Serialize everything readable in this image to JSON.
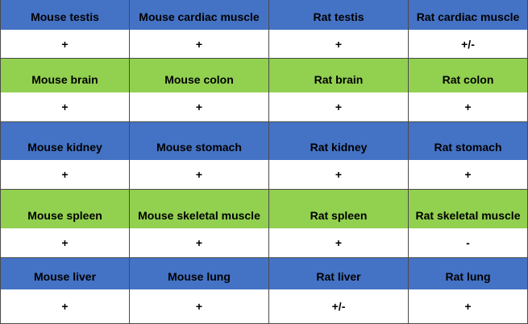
{
  "colors": {
    "blue_header": "#4472c4",
    "green_header": "#92d050",
    "value_row": "#ffffff"
  },
  "rows": [
    {
      "type": "header",
      "color": "blue",
      "cells": [
        "Mouse testis",
        "Mouse cardiac muscle",
        "Rat testis",
        "Rat cardiac muscle"
      ]
    },
    {
      "type": "values",
      "cells": [
        "+",
        "+",
        "+",
        "+/-"
      ]
    },
    {
      "type": "header",
      "color": "green",
      "cells": [
        "Mouse brain",
        "Mouse colon",
        "Rat brain",
        "Rat colon"
      ]
    },
    {
      "type": "values",
      "cells": [
        "+",
        "+",
        "+",
        "+"
      ]
    },
    {
      "type": "header",
      "color": "blue",
      "cells": [
        "Mouse kidney",
        "Mouse stomach",
        "Rat kidney",
        "Rat stomach"
      ]
    },
    {
      "type": "values",
      "cells": [
        "+",
        "+",
        "+",
        "+"
      ]
    },
    {
      "type": "header",
      "color": "green",
      "cells": [
        "Mouse spleen",
        "Mouse skeletal muscle",
        "Rat spleen",
        "Rat skeletal muscle"
      ]
    },
    {
      "type": "values",
      "cells": [
        "+",
        "+",
        "+",
        "-"
      ]
    },
    {
      "type": "header",
      "color": "blue",
      "cells": [
        "Mouse liver",
        "Mouse lung",
        "Rat liver",
        "Rat lung"
      ]
    },
    {
      "type": "values",
      "cells": [
        "+",
        "+",
        "+/-",
        "+"
      ]
    }
  ]
}
